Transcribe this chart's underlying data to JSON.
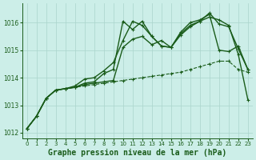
{
  "title": "Graphe pression niveau de la mer (hPa)",
  "background_color": "#cceee8",
  "grid_color": "#aad4cc",
  "line_color": "#1a5c1a",
  "xlim": [
    -0.5,
    23.5
  ],
  "ylim": [
    1011.8,
    1016.7
  ],
  "yticks": [
    1012,
    1013,
    1014,
    1015,
    1016
  ],
  "xticks": [
    0,
    1,
    2,
    3,
    4,
    5,
    6,
    7,
    8,
    9,
    10,
    11,
    12,
    13,
    14,
    15,
    16,
    17,
    18,
    19,
    20,
    21,
    22,
    23
  ],
  "series": [
    {
      "y": [
        1012.15,
        1012.6,
        1013.25,
        1013.55,
        1013.6,
        1013.65,
        1013.7,
        1013.75,
        1013.8,
        1013.85,
        1013.9,
        1013.95,
        1014.0,
        1014.05,
        1014.1,
        1014.15,
        1014.2,
        1014.3,
        1014.4,
        1014.5,
        1014.6,
        1014.6,
        1014.3,
        1014.2
      ],
      "style": "--",
      "lw": 0.8
    },
    {
      "y": [
        1012.15,
        1012.6,
        1013.25,
        1013.55,
        1013.6,
        1013.65,
        1013.75,
        1013.8,
        1013.85,
        1013.9,
        1015.1,
        1015.4,
        1015.5,
        1015.2,
        1015.35,
        1015.1,
        1015.65,
        1016.0,
        1016.1,
        1016.3,
        1015.0,
        1014.95,
        1015.15,
        1014.3
      ],
      "style": "-",
      "lw": 1.0
    },
    {
      "y": [
        1012.15,
        1012.6,
        1013.25,
        1013.55,
        1013.6,
        1013.65,
        1013.8,
        1013.85,
        1014.15,
        1014.3,
        1016.05,
        1015.75,
        1016.05,
        1015.5,
        1015.15,
        1015.1,
        1015.55,
        1015.85,
        1016.05,
        1016.2,
        1016.1,
        1015.9,
        1014.85,
        1013.2
      ],
      "style": "-",
      "lw": 1.0
    },
    {
      "y": [
        1012.15,
        1012.6,
        1013.25,
        1013.55,
        1013.6,
        1013.7,
        1013.95,
        1014.0,
        1014.25,
        1014.55,
        1015.35,
        1016.05,
        1015.9,
        1015.5,
        1015.15,
        1015.1,
        1015.6,
        1015.9,
        1016.05,
        1016.35,
        1015.95,
        1015.85,
        1015.05,
        1014.3
      ],
      "style": "-",
      "lw": 1.0
    }
  ],
  "marker": "+",
  "marker_size": 3.0,
  "marker_lw": 0.8,
  "title_fontsize": 7,
  "tick_fontsize": 5.5,
  "figsize": [
    3.2,
    2.0
  ],
  "dpi": 100
}
